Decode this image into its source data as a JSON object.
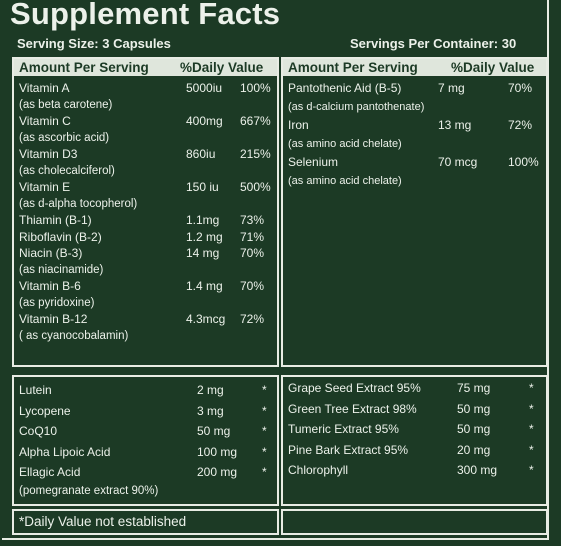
{
  "title": "Supplement Facts",
  "serving_size": "Serving Size: 3 Capsules",
  "servings_per_container": "Servings Per Container: 30",
  "header": {
    "amount": "Amount Per Serving",
    "dv": "%Daily Value"
  },
  "left_vitamins": [
    {
      "name": "Vitamin A",
      "amount": "5000iu",
      "dv": "100%",
      "sub": "(as beta carotene)"
    },
    {
      "name": "Vitamin C",
      "amount": "400mg",
      "dv": "667%",
      "sub": "(as ascorbic acid)"
    },
    {
      "name": "Vitamin D3",
      "amount": "860iu",
      "dv": "215%",
      "sub": "(as cholecalciferol)"
    },
    {
      "name": "Vitamin E",
      "amount": "150 iu",
      "dv": "500%",
      "sub": "(as d-alpha tocopherol)"
    },
    {
      "name": "Thiamin (B-1)",
      "amount": "1.1mg",
      "dv": "73%",
      "sub": ""
    },
    {
      "name": "Riboflavin (B-2)",
      "amount": "1.2 mg",
      "dv": "71%",
      "sub": ""
    },
    {
      "name": "Niacin (B-3)",
      "amount": "14 mg",
      "dv": "70%",
      "sub": "(as niacinamide)"
    },
    {
      "name": "Vitamin B-6",
      "amount": "1.4 mg",
      "dv": "70%",
      "sub": "(as pyridoxine)"
    },
    {
      "name": "Vitamin B-12",
      "amount": "4.3mcg",
      "dv": "72%",
      "sub": "( as cyanocobalamin)"
    }
  ],
  "right_minerals": [
    {
      "name": "Pantothenic Aid (B-5)",
      "amount": "7 mg",
      "dv": "70%",
      "sub": "(as d-calcium pantothenate)"
    },
    {
      "name": "Iron",
      "amount": "13 mg",
      "dv": "72%",
      "sub": "(as amino acid chelate)"
    },
    {
      "name": "Selenium",
      "amount": "70 mcg",
      "dv": "100%",
      "sub": "(as amino acid chelate)"
    }
  ],
  "left_extras": [
    {
      "name": "Lutein",
      "amount": "2 mg",
      "dv": "*"
    },
    {
      "name": "Lycopene",
      "amount": "3 mg",
      "dv": "*"
    },
    {
      "name": "CoQ10",
      "amount": "50 mg",
      "dv": "*"
    },
    {
      "name": "Alpha Lipoic Acid",
      "amount": "100 mg",
      "dv": "*"
    },
    {
      "name": "Ellagic Acid",
      "amount": "200 mg",
      "dv": "*"
    }
  ],
  "left_extras_sub": "(pomegranate extract 90%)",
  "right_extras": [
    {
      "name": "Grape Seed Extract 95%",
      "amount": "75 mg",
      "dv": "*"
    },
    {
      "name": "Green Tree Extract 98%",
      "amount": "50 mg",
      "dv": "*"
    },
    {
      "name": "Tumeric Extract 95%",
      "amount": "50 mg",
      "dv": "*"
    },
    {
      "name": "Pine Bark Extract 95%",
      "amount": "20 mg",
      "dv": "*"
    },
    {
      "name": "Chlorophyll",
      "amount": "300 mg",
      "dv": "*"
    }
  ],
  "footnote": "*Daily Value not established"
}
